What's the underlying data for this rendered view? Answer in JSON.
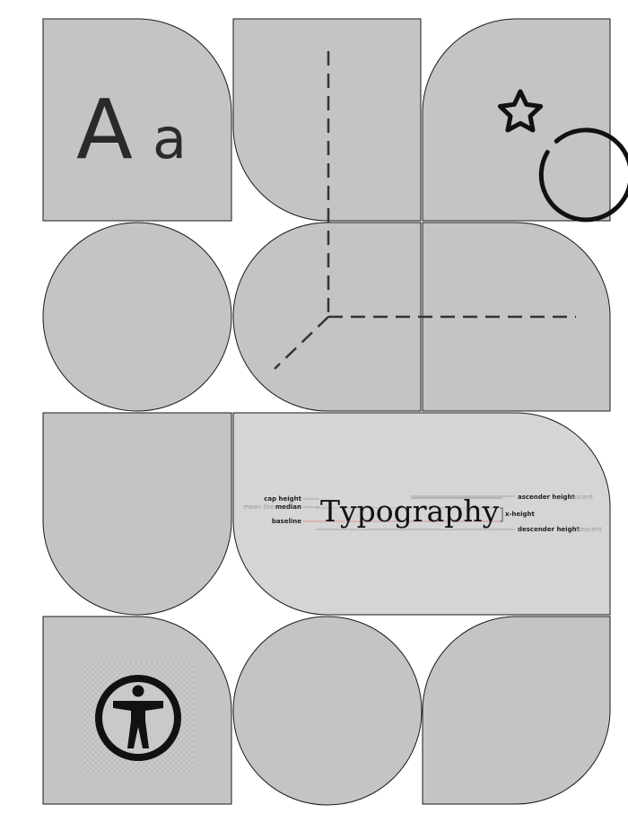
{
  "tiles": {
    "aa_glyph": "A",
    "aa_glyph_small": "a"
  },
  "typography_specimen": {
    "word": "Typography",
    "labels": {
      "cap_height": "cap height",
      "mean_line": "mean line",
      "median": "median",
      "baseline": "baseline",
      "ascender_height": "ascender height",
      "ascent": "ascent",
      "x_height": "x-height",
      "descender_height": "descender height",
      "descent": "descent"
    }
  },
  "colors": {
    "tile_fill": "#c4c4c4",
    "specimen_fill": "#d5d5d5",
    "stroke": "#1a1a1a",
    "baseline_accent": "#d98080",
    "guide": "#777777"
  },
  "icons": [
    "star-in-circle-icon",
    "accessibility-icon",
    "axes-3d-icon"
  ]
}
